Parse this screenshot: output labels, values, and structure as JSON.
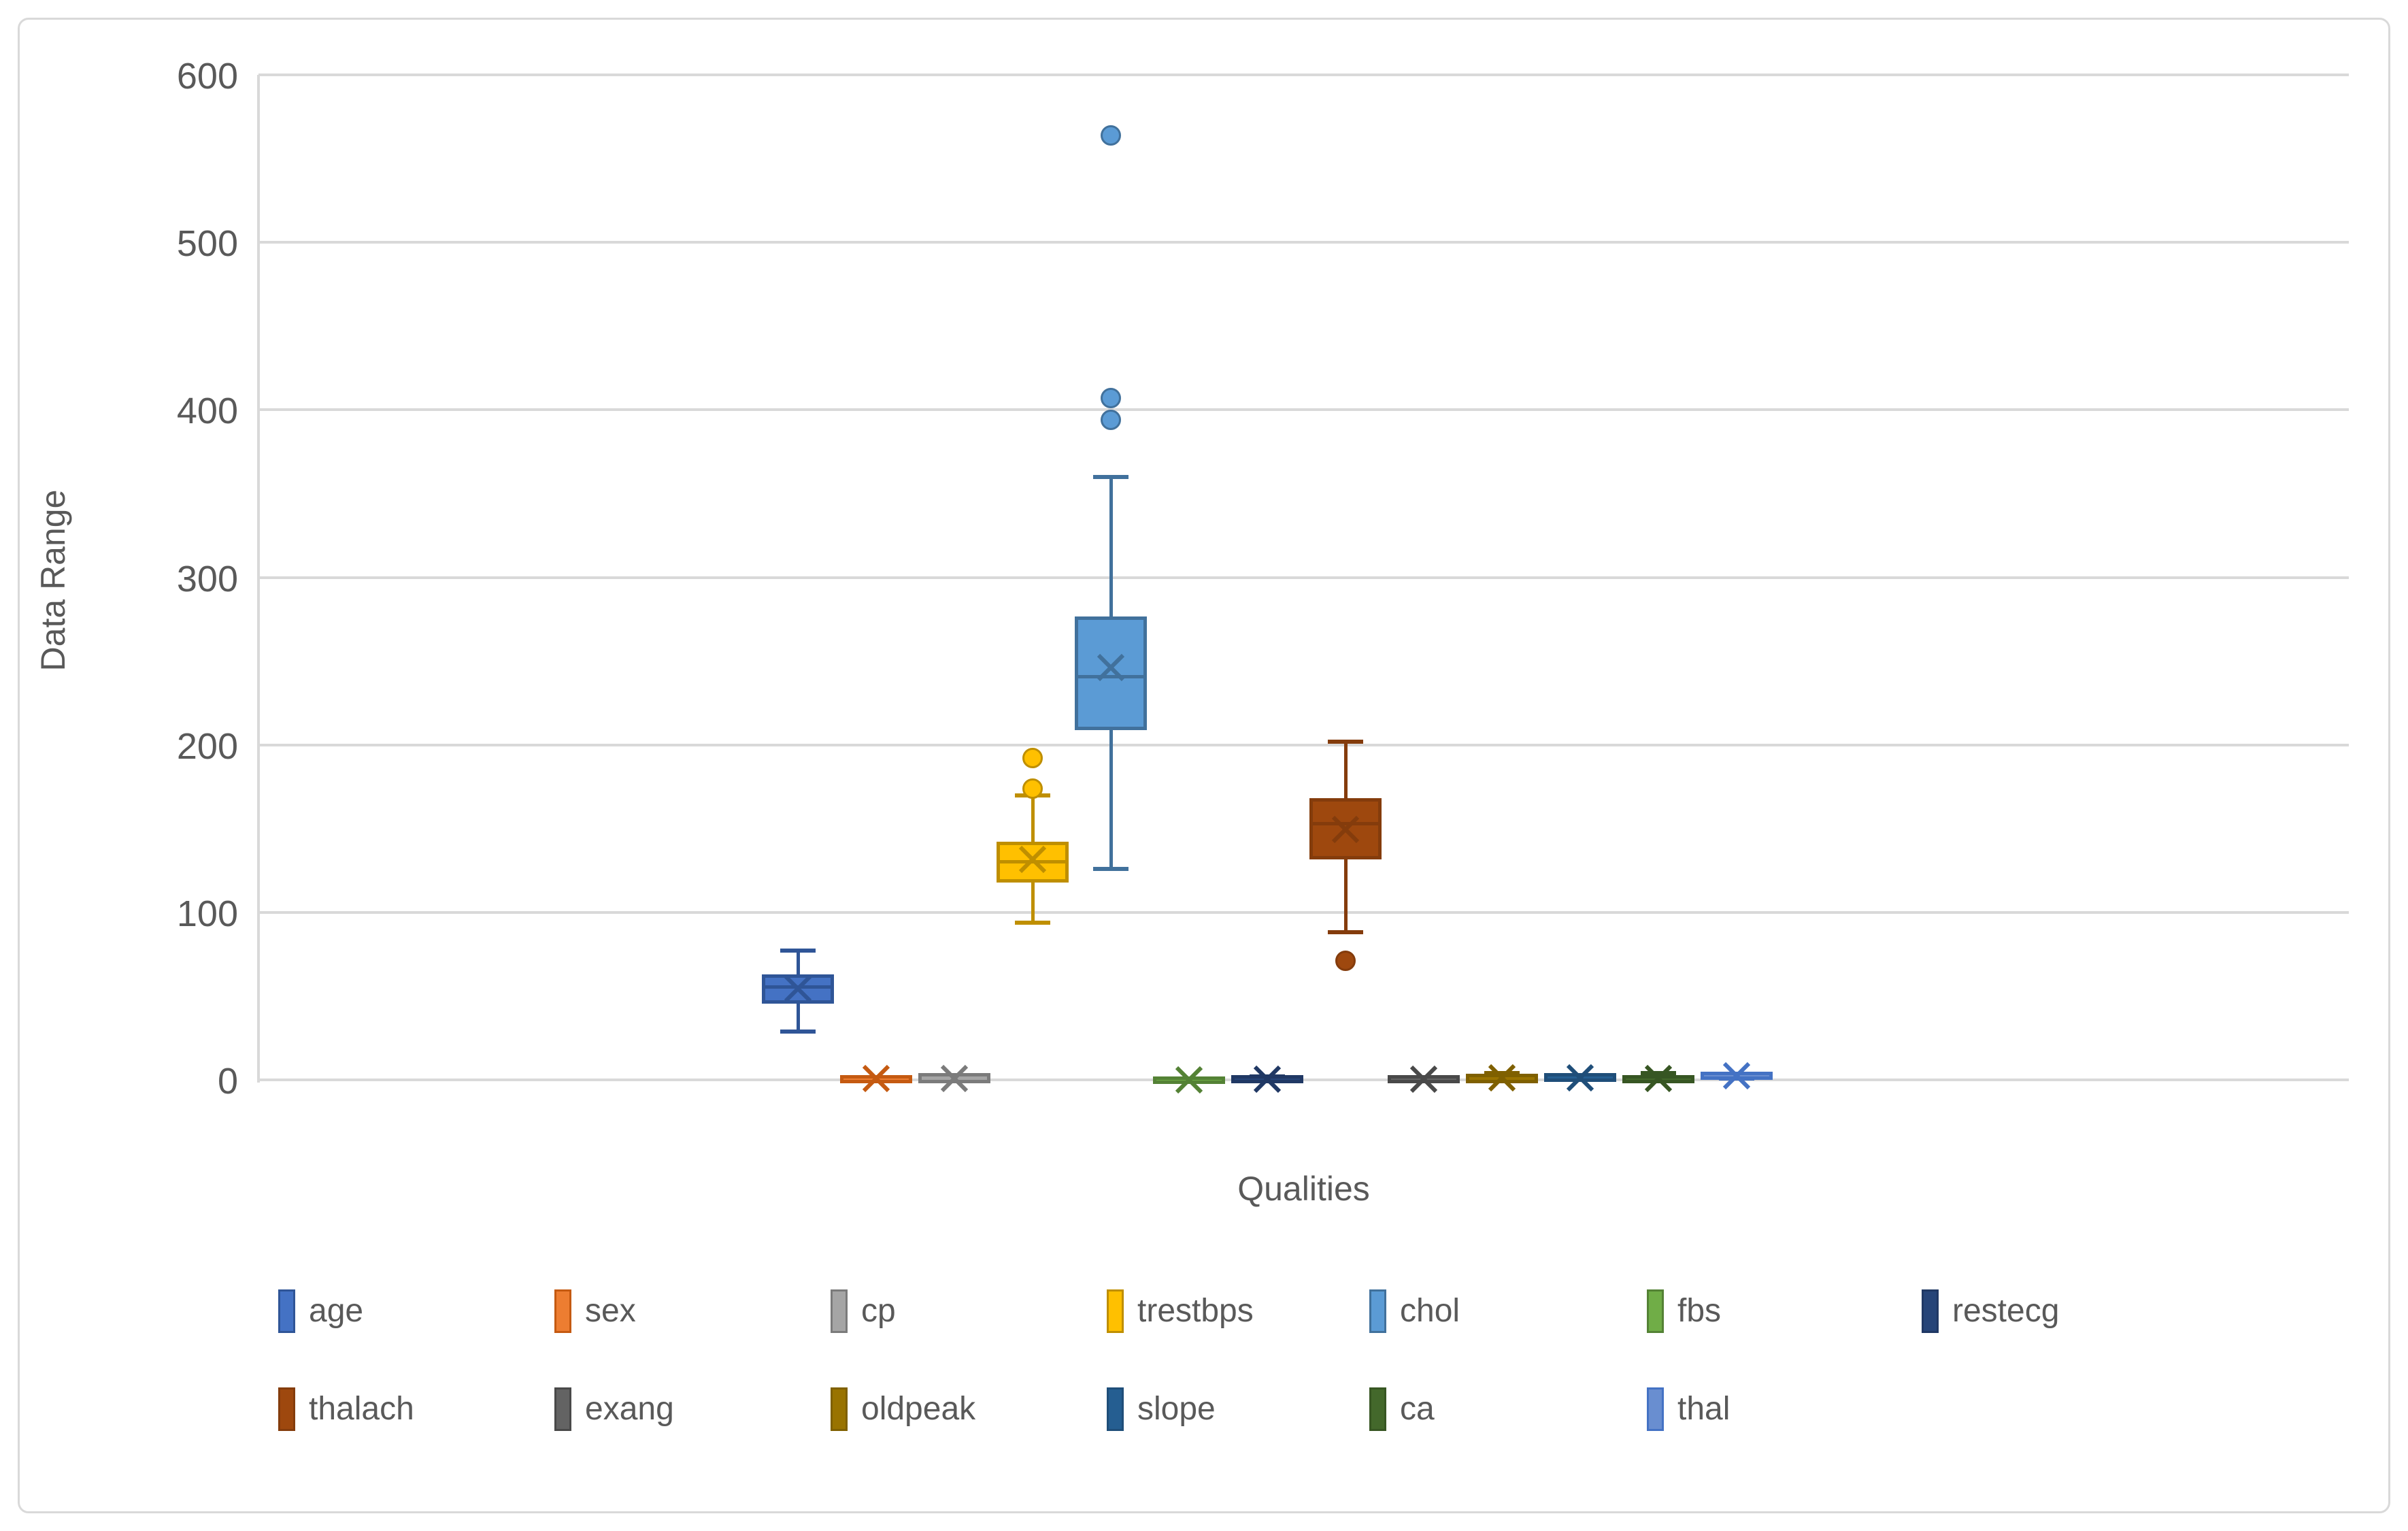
{
  "chart_data": {
    "type": "boxplot",
    "title": "",
    "xlabel": "Qualities",
    "ylabel": "Data Range",
    "ylim": [
      0,
      600
    ],
    "yticks": [
      "0",
      "100",
      "200",
      "300",
      "400",
      "500",
      "600"
    ],
    "grid": true,
    "legend_position": "bottom",
    "series": [
      {
        "name": "age",
        "fill": "#4472C4",
        "line": "#2F5597",
        "min": 29,
        "q1": 47.5,
        "median": 55.5,
        "q3": 61,
        "max": 77,
        "mean": 54.4,
        "outliers": []
      },
      {
        "name": "sex",
        "fill": "#ED7D31",
        "line": "#C55A11",
        "min": 0,
        "q1": 0,
        "median": 1,
        "q3": 1,
        "max": 1,
        "mean": 0.68,
        "outliers": []
      },
      {
        "name": "cp",
        "fill": "#A5A5A5",
        "line": "#7B7B7B",
        "min": 0,
        "q1": 0,
        "median": 1,
        "q3": 2,
        "max": 3,
        "mean": 0.97,
        "outliers": []
      },
      {
        "name": "trestbps",
        "fill": "#FFC000",
        "line": "#BF8F00",
        "min": 94,
        "q1": 120,
        "median": 130,
        "q3": 140,
        "max": 170,
        "mean": 131.6,
        "outliers": [
          174,
          192
        ]
      },
      {
        "name": "chol",
        "fill": "#5B9BD5",
        "line": "#41719C",
        "min": 126,
        "q1": 211,
        "median": 240.5,
        "q3": 274.5,
        "max": 360,
        "mean": 246.3,
        "outliers": [
          394,
          407,
          564
        ]
      },
      {
        "name": "fbs",
        "fill": "#70AD47",
        "line": "#548235",
        "min": 0,
        "q1": 0,
        "median": 0,
        "q3": 0,
        "max": 1,
        "mean": 0.15,
        "outliers": []
      },
      {
        "name": "restecg",
        "fill": "#264478",
        "line": "#203864",
        "min": 0,
        "q1": 0,
        "median": 1,
        "q3": 1,
        "max": 2,
        "mean": 0.53,
        "outliers": []
      },
      {
        "name": "thalach",
        "fill": "#9E480E",
        "line": "#843C0C",
        "min": 88,
        "q1": 133.5,
        "median": 153,
        "q3": 166,
        "max": 202,
        "mean": 149.6,
        "outliers": [
          71
        ]
      },
      {
        "name": "exang",
        "fill": "#636363",
        "line": "#494949",
        "min": 0,
        "q1": 0,
        "median": 0,
        "q3": 1,
        "max": 1,
        "mean": 0.33,
        "outliers": []
      },
      {
        "name": "oldpeak",
        "fill": "#997300",
        "line": "#7F6000",
        "min": 0,
        "q1": 0,
        "median": 0.8,
        "q3": 1.6,
        "max": 4,
        "mean": 1.04,
        "outliers": []
      },
      {
        "name": "slope",
        "fill": "#255E91",
        "line": "#1F4E79",
        "min": 0,
        "q1": 1,
        "median": 1,
        "q3": 2,
        "max": 2,
        "mean": 1.4,
        "outliers": []
      },
      {
        "name": "ca",
        "fill": "#43682B",
        "line": "#375623",
        "min": 0,
        "q1": 0,
        "median": 0,
        "q3": 1,
        "max": 4,
        "mean": 0.73,
        "outliers": []
      },
      {
        "name": "thal",
        "fill": "#698ED0",
        "line": "#4472C4",
        "min": 1,
        "q1": 2,
        "median": 2,
        "q3": 3,
        "max": 3,
        "mean": 2.31,
        "outliers": []
      }
    ]
  },
  "legend": {
    "rows": [
      [
        "age",
        "sex",
        "cp",
        "trestbps",
        "chol",
        "fbs",
        "restecg"
      ],
      [
        "thalach",
        "exang",
        "oldpeak",
        "slope",
        "ca",
        "thal"
      ]
    ]
  },
  "colors": {
    "gridline": "#D9D9D9",
    "axis_text": "#595959",
    "background": "#FFFFFF"
  }
}
